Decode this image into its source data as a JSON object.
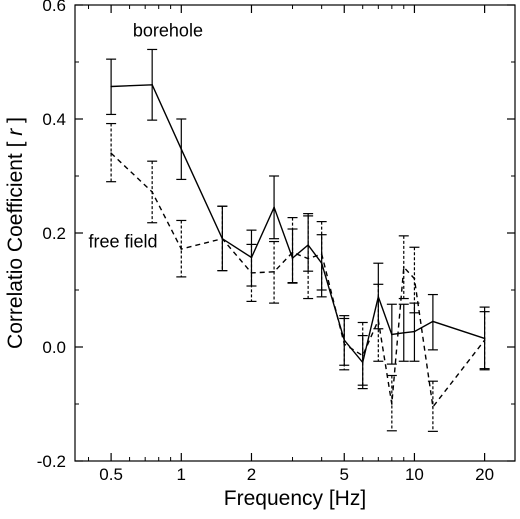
{
  "chart_data": {
    "type": "line",
    "xlabel": "Frequency [Hz]",
    "ylabel_prefix": "Correlatio Coefficient [ ",
    "ylabel_symbol": "r",
    "ylabel_suffix": " ]",
    "xscale": "log",
    "xlim": [
      0.35,
      27
    ],
    "ylim": [
      -0.2,
      0.6
    ],
    "xticks": [
      0.5,
      1,
      2,
      5,
      10,
      20
    ],
    "xtick_labels": [
      "0.5",
      "1",
      "2",
      "5",
      "10",
      "20"
    ],
    "yticks": [
      -0.2,
      0.0,
      0.2,
      0.4,
      0.6
    ],
    "ytick_labels": [
      "-0.2",
      "0.0",
      "0.2",
      "0.4",
      "0.6"
    ],
    "grid": false,
    "series": [
      {
        "name": "borehole",
        "style": "solid",
        "color": "#000000",
        "points": [
          {
            "x": 0.5,
            "y": 0.457,
            "lo": 0.408,
            "hi": 0.505
          },
          {
            "x": 0.75,
            "y": 0.46,
            "lo": 0.398,
            "hi": 0.522
          },
          {
            "x": 1.0,
            "y": 0.347,
            "lo": 0.294,
            "hi": 0.4
          },
          {
            "x": 1.5,
            "y": 0.19,
            "lo": 0.134,
            "hi": 0.247
          },
          {
            "x": 2.0,
            "y": 0.157,
            "lo": 0.107,
            "hi": 0.205
          },
          {
            "x": 2.5,
            "y": 0.245,
            "lo": 0.19,
            "hi": 0.3
          },
          {
            "x": 3.0,
            "y": 0.156,
            "lo": 0.112,
            "hi": 0.207
          },
          {
            "x": 3.5,
            "y": 0.179,
            "lo": 0.133,
            "hi": 0.234
          },
          {
            "x": 4.0,
            "y": 0.147,
            "lo": 0.088,
            "hi": 0.197
          },
          {
            "x": 5.0,
            "y": 0.012,
            "lo": -0.032,
            "hi": 0.055
          },
          {
            "x": 6.0,
            "y": -0.027,
            "lo": -0.073,
            "hi": 0.02
          },
          {
            "x": 7.0,
            "y": 0.088,
            "lo": 0.032,
            "hi": 0.147
          },
          {
            "x": 8.0,
            "y": 0.022,
            "lo": -0.03,
            "hi": 0.075
          },
          {
            "x": 9.0,
            "y": 0.025,
            "lo": -0.025,
            "hi": 0.075
          },
          {
            "x": 10.0,
            "y": 0.027,
            "lo": -0.025,
            "hi": 0.077
          },
          {
            "x": 12.0,
            "y": 0.045,
            "lo": -0.005,
            "hi": 0.092
          },
          {
            "x": 20.0,
            "y": 0.015,
            "lo": -0.04,
            "hi": 0.07
          }
        ]
      },
      {
        "name": "free field",
        "style": "dashed",
        "color": "#000000",
        "points": [
          {
            "x": 0.5,
            "y": 0.34,
            "lo": 0.29,
            "hi": 0.392
          },
          {
            "x": 0.75,
            "y": 0.272,
            "lo": 0.218,
            "hi": 0.326
          },
          {
            "x": 1.0,
            "y": 0.172,
            "lo": 0.123,
            "hi": 0.222
          },
          {
            "x": 1.5,
            "y": 0.19,
            "lo": 0.134,
            "hi": 0.247
          },
          {
            "x": 2.0,
            "y": 0.13,
            "lo": 0.08,
            "hi": 0.18
          },
          {
            "x": 2.5,
            "y": 0.132,
            "lo": 0.077,
            "hi": 0.185
          },
          {
            "x": 3.0,
            "y": 0.166,
            "lo": 0.113,
            "hi": 0.227
          },
          {
            "x": 3.5,
            "y": 0.155,
            "lo": 0.085,
            "hi": 0.23
          },
          {
            "x": 4.0,
            "y": 0.163,
            "lo": 0.1,
            "hi": 0.22
          },
          {
            "x": 5.0,
            "y": 0.005,
            "lo": -0.04,
            "hi": 0.05
          },
          {
            "x": 6.0,
            "y": -0.015,
            "lo": -0.067,
            "hi": 0.043
          },
          {
            "x": 7.0,
            "y": 0.047,
            "lo": -0.025,
            "hi": 0.11
          },
          {
            "x": 8.0,
            "y": -0.1,
            "lo": -0.147,
            "hi": -0.05
          },
          {
            "x": 9.0,
            "y": 0.14,
            "lo": 0.085,
            "hi": 0.195
          },
          {
            "x": 10.0,
            "y": 0.12,
            "lo": 0.06,
            "hi": 0.175
          },
          {
            "x": 12.0,
            "y": -0.105,
            "lo": -0.148,
            "hi": -0.06
          },
          {
            "x": 20.0,
            "y": 0.012,
            "lo": -0.038,
            "hi": 0.062
          }
        ]
      }
    ],
    "annotations": [
      {
        "text": "borehole",
        "x": 0.62,
        "y": 0.545
      },
      {
        "text": "free field",
        "x": 0.4,
        "y": 0.175
      }
    ]
  }
}
